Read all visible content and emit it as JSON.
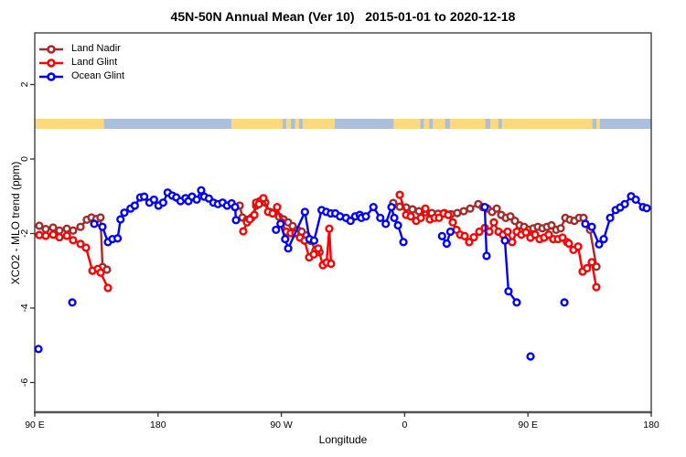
{
  "title": "45N-50N Annual Mean (Ver 10)   2015-01-01 to 2020-12-18",
  "chart_data": {
    "type": "line",
    "title": "45N-50N Annual Mean (Ver 10)   2015-01-01 to 2020-12-18",
    "xlabel": "Longitude",
    "ylabel": "XCO2 - MLO trend (ppm)",
    "x_axis": {
      "description": "wrapped longitude axis spanning 450 deg: 90E -> 180 -> 90W -> 0 -> 90E -> 180",
      "range": [
        90,
        540
      ],
      "ticks": [
        {
          "p": 90,
          "label": "90 E"
        },
        {
          "p": 180,
          "label": "180"
        },
        {
          "p": 270,
          "label": "90 W"
        },
        {
          "p": 360,
          "label": "0"
        },
        {
          "p": 450,
          "label": "90 E"
        },
        {
          "p": 540,
          "label": "180"
        }
      ]
    },
    "y_axis": {
      "range": [
        -6.8,
        3.39
      ],
      "ticks": [
        {
          "v": 2,
          "label": "2"
        },
        {
          "v": 0,
          "label": "0"
        },
        {
          "v": -2,
          "label": "-2"
        },
        {
          "v": -4,
          "label": "-4"
        },
        {
          "v": -6,
          "label": "-6"
        }
      ]
    },
    "legend": {
      "position": "top-left",
      "items": [
        {
          "label": "Land Nadir",
          "color": "#A52A2A"
        },
        {
          "label": "Land Glint",
          "color": "#FF0000"
        },
        {
          "label": "Ocean Glint",
          "color": "#0000FF"
        }
      ]
    },
    "map_strip": {
      "land_color": "#FCD97E",
      "ocean_color": "#A9BFDB",
      "v_top": 1.08,
      "v_bottom": 0.81,
      "segments": [
        {
          "p0": 90,
          "p1": 140.5,
          "type": "land"
        },
        {
          "p0": 140.5,
          "p1": 233.5,
          "type": "ocean"
        },
        {
          "p0": 233.5,
          "p1": 309,
          "type": "land"
        },
        {
          "p0": 309,
          "p1": 352,
          "type": "ocean"
        },
        {
          "p0": 352,
          "p1": 497,
          "type": "land"
        },
        {
          "p0": 497,
          "p1": 540,
          "type": "ocean"
        },
        {
          "p0": 271,
          "p1": 273.5,
          "type": "ocean"
        },
        {
          "p0": 277,
          "p1": 280,
          "type": "ocean"
        },
        {
          "p0": 283,
          "p1": 285.5,
          "type": "ocean"
        },
        {
          "p0": 371.5,
          "p1": 374,
          "type": "ocean"
        },
        {
          "p0": 378,
          "p1": 380.5,
          "type": "ocean"
        },
        {
          "p0": 389.5,
          "p1": 393,
          "type": "ocean"
        },
        {
          "p0": 419,
          "p1": 422.5,
          "type": "ocean"
        },
        {
          "p0": 428.5,
          "p1": 431,
          "type": "ocean"
        },
        {
          "p0": 500,
          "p1": 502.5,
          "type": "land"
        }
      ]
    },
    "series": [
      {
        "name": "Land Nadir",
        "color": "#A52A2A",
        "segments": [
          [
            [
              93.3,
              -1.79
            ],
            [
              98,
              -1.88
            ],
            [
              103.4,
              -1.84
            ],
            [
              108,
              -1.92
            ],
            [
              113.4,
              -1.87
            ],
            [
              118,
              -1.92
            ],
            [
              123.4,
              -1.82
            ],
            [
              128,
              -1.63
            ],
            [
              131.4,
              -1.57
            ],
            [
              135,
              -1.61
            ],
            [
              138,
              -1.57
            ],
            [
              139.5,
              -2.9
            ],
            [
              142.7,
              -2.97
            ]
          ],
          [
            [
              239.6,
              -1.25
            ],
            [
              241.6,
              -1.57
            ],
            [
              244.9,
              -1.63
            ],
            [
              248.3,
              -1.57
            ],
            [
              251.6,
              -1.25
            ],
            [
              254.3,
              -1.13
            ],
            [
              258.3,
              -1.17
            ],
            [
              261.6,
              -1.42
            ],
            [
              264.9,
              -1.44
            ],
            [
              268.3,
              -1.55
            ],
            [
              271.6,
              -1.62
            ],
            [
              274.9,
              -1.7
            ],
            [
              278.3,
              -1.8
            ],
            [
              281.6,
              -1.9
            ],
            [
              284.9,
              -1.95
            ],
            [
              288.3,
              -2.05
            ],
            [
              291.6,
              -2.2
            ],
            [
              294.9,
              -2.45
            ],
            [
              297.9,
              -2.5
            ]
          ],
          [
            [
              351.7,
              -1.18
            ],
            [
              356.4,
              -1.28
            ],
            [
              361.1,
              -1.3
            ],
            [
              365.7,
              -1.35
            ],
            [
              370.4,
              -1.4
            ],
            [
              375.1,
              -1.43
            ],
            [
              379.8,
              -1.45
            ],
            [
              384.4,
              -1.47
            ],
            [
              389.1,
              -1.45
            ],
            [
              393.8,
              -1.48
            ],
            [
              398.4,
              -1.45
            ],
            [
              403.1,
              -1.4
            ],
            [
              407.8,
              -1.33
            ],
            [
              413.8,
              -1.21
            ],
            [
              417.1,
              -1.29
            ],
            [
              420.5,
              -1.33
            ],
            [
              423.8,
              -1.42
            ],
            [
              427.2,
              -1.33
            ],
            [
              430.5,
              -1.5
            ],
            [
              433.8,
              -1.58
            ],
            [
              437.2,
              -1.54
            ],
            [
              440.5,
              -1.66
            ],
            [
              443.9,
              -1.78
            ],
            [
              447.2,
              -1.82
            ],
            [
              450.5,
              -1.9
            ],
            [
              453.9,
              -1.86
            ],
            [
              457.2,
              -1.82
            ],
            [
              460.6,
              -1.86
            ],
            [
              463.9,
              -1.82
            ],
            [
              467.2,
              -1.78
            ],
            [
              470.6,
              -1.9
            ],
            [
              473.9,
              -1.86
            ],
            [
              477.3,
              -1.58
            ],
            [
              480.6,
              -1.63
            ],
            [
              483.9,
              -1.66
            ],
            [
              487.3,
              -1.58
            ],
            [
              490.6,
              -1.58
            ],
            [
              495.3,
              -1.9
            ],
            [
              500,
              -2.89
            ]
          ]
        ],
        "isolated": []
      },
      {
        "name": "Land Glint",
        "color": "#FF0000",
        "segments": [
          [
            [
              93.3,
              -2.04
            ],
            [
              98,
              -2.06
            ],
            [
              103.4,
              -2.03
            ],
            [
              108,
              -2.1
            ],
            [
              113.4,
              -2.06
            ],
            [
              118,
              -2.18
            ],
            [
              123.4,
              -2.28
            ],
            [
              127.4,
              -2.38
            ],
            [
              132.1,
              -3.0
            ],
            [
              136,
              -2.95
            ],
            [
              138.1,
              -3.05
            ],
            [
              143.4,
              -3.46
            ]
          ],
          [
            [
              242.2,
              -1.94
            ],
            [
              244.9,
              -1.7
            ],
            [
              246.9,
              -1.62
            ],
            [
              250.3,
              -1.5
            ],
            [
              251.6,
              -1.17
            ],
            [
              253.6,
              -1.21
            ],
            [
              256.9,
              -1.05
            ],
            [
              260.3,
              -1.42
            ],
            [
              263.6,
              -1.46
            ],
            [
              266.9,
              -1.29
            ],
            [
              270.3,
              -1.7
            ],
            [
              273.6,
              -1.95
            ],
            [
              276.9,
              -1.99
            ],
            [
              280.3,
              -1.99
            ],
            [
              283.6,
              -2.11
            ],
            [
              286.9,
              -2.19
            ],
            [
              290.3,
              -2.64
            ],
            [
              293.6,
              -2.56
            ],
            [
              296.9,
              -2.4
            ],
            [
              300.3,
              -2.85
            ],
            [
              303,
              -2.78
            ],
            [
              305,
              -1.87
            ],
            [
              306.3,
              -2.81
            ]
          ],
          [
            [
              356.4,
              -0.96
            ],
            [
              361.1,
              -1.5
            ],
            [
              364.4,
              -1.54
            ],
            [
              368.4,
              -1.66
            ],
            [
              371.8,
              -1.58
            ],
            [
              375.1,
              -1.33
            ],
            [
              378.4,
              -1.62
            ],
            [
              381.8,
              -1.58
            ],
            [
              385.1,
              -1.58
            ],
            [
              388.4,
              -1.46
            ],
            [
              391.8,
              -1.5
            ],
            [
              395.1,
              -1.7
            ],
            [
              397.8,
              -1.9
            ],
            [
              400.5,
              -2.03
            ],
            [
              403.8,
              -2.07
            ],
            [
              407.1,
              -2.23
            ],
            [
              410.5,
              -2.1
            ],
            [
              414.5,
              -1.95
            ],
            [
              418.5,
              -1.85
            ],
            [
              421.8,
              -1.95
            ],
            [
              425.1,
              -1.7
            ],
            [
              428.5,
              -1.95
            ],
            [
              431.8,
              -2.03
            ],
            [
              435.1,
              -1.95
            ],
            [
              438.5,
              -2.23
            ],
            [
              441.8,
              -1.95
            ],
            [
              445.2,
              -2.03
            ],
            [
              448.5,
              -1.97
            ],
            [
              451.8,
              -2.11
            ],
            [
              455.2,
              -2.03
            ],
            [
              458.5,
              -2.15
            ],
            [
              461.8,
              -2.11
            ],
            [
              465.2,
              -2.03
            ],
            [
              468.5,
              -2.15
            ],
            [
              471.9,
              -2.15
            ],
            [
              475.2,
              -2.11
            ],
            [
              478.5,
              -2.23
            ],
            [
              479.9,
              -2.27
            ],
            [
              483.2,
              -2.44
            ],
            [
              486.6,
              -2.35
            ],
            [
              489.9,
              -3.02
            ],
            [
              493.2,
              -2.93
            ],
            [
              496.6,
              -2.77
            ],
            [
              499.9,
              -3.44
            ]
          ]
        ],
        "isolated": []
      },
      {
        "name": "Ocean Glint",
        "color": "#0000FF",
        "segments": [
          [
            [
              133.4,
              -1.74
            ],
            [
              139.4,
              -1.82
            ],
            [
              143.4,
              -2.23
            ],
            [
              146.7,
              -2.15
            ],
            [
              150.5,
              -2.13
            ],
            [
              152.6,
              -1.62
            ],
            [
              155.4,
              -1.44
            ],
            [
              159.9,
              -1.33
            ],
            [
              163,
              -1.25
            ],
            [
              167,
              -1.03
            ],
            [
              169.9,
              -1.01
            ],
            [
              173.7,
              -1.17
            ],
            [
              177,
              -1.09
            ],
            [
              180.3,
              -1.25
            ],
            [
              183.7,
              -1.17
            ],
            [
              187,
              -0.9
            ],
            [
              190.3,
              -0.98
            ],
            [
              193.3,
              -1.03
            ],
            [
              196.4,
              -1.13
            ],
            [
              200,
              -1.05
            ],
            [
              202.2,
              -1.13
            ],
            [
              204.8,
              -1.01
            ],
            [
              208.2,
              -1.09
            ],
            [
              211.5,
              -0.84
            ],
            [
              213.7,
              -1.01
            ],
            [
              217.1,
              -1.06
            ],
            [
              220.4,
              -1.17
            ],
            [
              223.7,
              -1.21
            ],
            [
              227.1,
              -1.17
            ],
            [
              230.4,
              -1.25
            ],
            [
              233.7,
              -1.19
            ],
            [
              236.2,
              -1.29
            ],
            [
              236.9,
              -1.64
            ]
          ],
          [
            [
              266.1,
              -1.9
            ],
            [
              269.4,
              -1.74
            ],
            [
              272.8,
              -2.15
            ],
            [
              275,
              -2.4
            ],
            [
              287.2,
              -1.42
            ],
            [
              290.5,
              -2.15
            ],
            [
              293.9,
              -2.19
            ],
            [
              299.4,
              -1.37
            ],
            [
              302.8,
              -1.42
            ],
            [
              306.1,
              -1.46
            ],
            [
              309.4,
              -1.46
            ],
            [
              312.8,
              -1.54
            ],
            [
              317.2,
              -1.58
            ],
            [
              320.5,
              -1.66
            ],
            [
              323.9,
              -1.54
            ],
            [
              327.2,
              -1.5
            ],
            [
              328.4,
              -1.58
            ],
            [
              331.7,
              -1.54
            ],
            [
              337.2,
              -1.29
            ],
            [
              342.2,
              -1.58
            ],
            [
              346.2,
              -1.74
            ],
            [
              350.4,
              -1.29
            ],
            [
              352.4,
              -1.58
            ],
            [
              355.1,
              -1.78
            ],
            [
              359.1,
              -2.23
            ]
          ],
          [
            [
              387.3,
              -2.07
            ],
            [
              390.7,
              -2.27
            ],
            [
              393.4,
              -1.95
            ]
          ],
          [
            [
              418.5,
              -1.29
            ],
            [
              419.8,
              -2.6
            ]
          ],
          [
            [
              433.2,
              -2.19
            ],
            [
              435.8,
              -3.55
            ],
            [
              441.8,
              -3.85
            ]
          ],
          [
            [
              491.9,
              -1.74
            ],
            [
              496.6,
              -1.82
            ],
            [
              501.9,
              -2.29
            ],
            [
              505.3,
              -2.15
            ],
            [
              510,
              -1.58
            ],
            [
              514,
              -1.37
            ],
            [
              517.3,
              -1.3
            ],
            [
              520.7,
              -1.21
            ],
            [
              525.3,
              -1.0
            ],
            [
              528.7,
              -1.09
            ],
            [
              534,
              -1.29
            ],
            [
              536.7,
              -1.32
            ]
          ]
        ],
        "isolated": [
          [
            92.7,
            -5.1
          ],
          [
            117.4,
            -3.85
          ],
          [
            451.9,
            -5.3
          ],
          [
            476.6,
            -3.85
          ]
        ]
      }
    ]
  }
}
